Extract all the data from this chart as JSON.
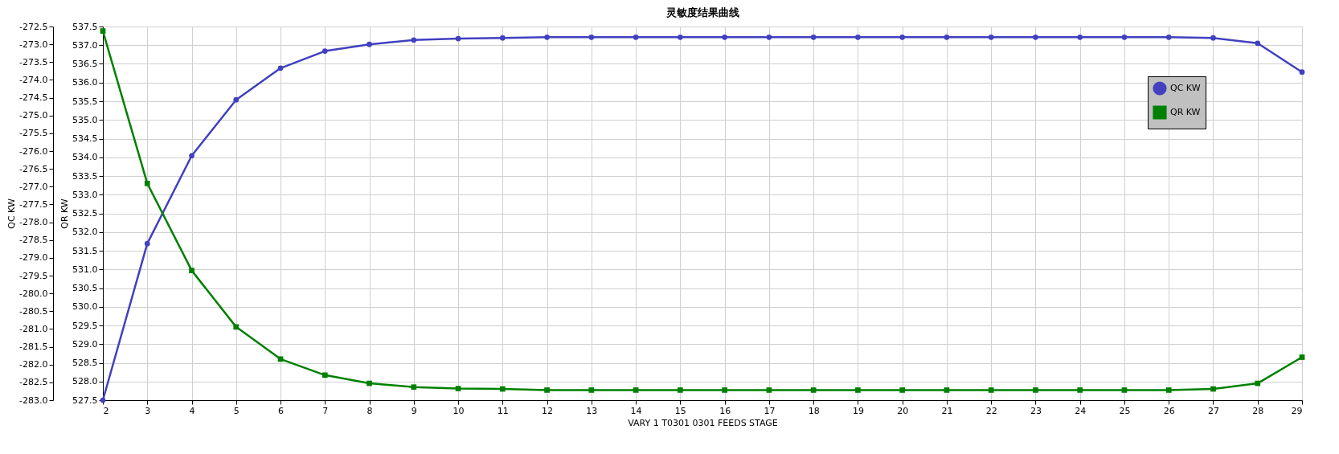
{
  "chart_data": {
    "type": "line",
    "title": "灵敏度结果曲线",
    "xlabel": "VARY   1 T0301 0301 FEEDS STAGE",
    "ylabel": "QC KW",
    "y2label": "QR KW",
    "x": [
      2,
      3,
      4,
      5,
      6,
      7,
      8,
      9,
      10,
      11,
      12,
      13,
      14,
      15,
      16,
      17,
      18,
      19,
      20,
      21,
      22,
      23,
      24,
      25,
      26,
      27,
      28,
      29
    ],
    "series": [
      {
        "name": "QC KW",
        "color": "#4040c0",
        "marker": "circle",
        "values": [
          -283.0,
          -278.6,
          -276.13,
          -274.56,
          -273.67,
          -273.19,
          -273.0,
          -272.88,
          -272.84,
          -272.82,
          -272.8,
          -272.8,
          -272.8,
          -272.8,
          -272.8,
          -272.8,
          -272.8,
          -272.8,
          -272.8,
          -272.8,
          -272.8,
          -272.8,
          -272.8,
          -272.8,
          -272.8,
          -272.82,
          -272.97,
          -273.78
        ]
      },
      {
        "name": "QR KW",
        "color": "#008000",
        "marker": "square",
        "axis": "y2",
        "values": [
          537.38,
          533.3,
          530.97,
          529.46,
          528.6,
          528.17,
          527.95,
          527.85,
          527.81,
          527.8,
          527.77,
          527.77,
          527.77,
          527.77,
          527.77,
          527.77,
          527.77,
          527.77,
          527.77,
          527.77,
          527.77,
          527.77,
          527.77,
          527.77,
          527.77,
          527.8,
          527.95,
          528.65
        ]
      }
    ],
    "xlim": [
      2,
      29
    ],
    "xticks": [
      2,
      3,
      4,
      5,
      6,
      7,
      8,
      9,
      10,
      11,
      12,
      13,
      14,
      15,
      16,
      17,
      18,
      19,
      20,
      21,
      22,
      23,
      24,
      25,
      26,
      27,
      28,
      29
    ],
    "ylim": [
      -283,
      -272.5
    ],
    "yticks": [
      {
        "value": -283,
        "label": "-283.0"
      },
      -282.5,
      {
        "value": -282,
        "label": "-282.0"
      },
      -281.5,
      {
        "value": -281,
        "label": "-281.0"
      },
      -280.5,
      {
        "value": -280,
        "label": "-280.0"
      },
      -279.5,
      {
        "value": -279,
        "label": "-279.0"
      },
      -278.5,
      {
        "value": -278,
        "label": "-278.0"
      },
      -277.5,
      {
        "value": -277,
        "label": "-277.0"
      },
      -276.5,
      {
        "value": -276,
        "label": "-276.0"
      },
      -275.5,
      {
        "value": -275,
        "label": "-275.0"
      },
      -274.5,
      {
        "value": -274,
        "label": "-274.0"
      },
      -273.5,
      {
        "value": -273,
        "label": "-273.0"
      },
      -272.5
    ],
    "y2lim": [
      527.5,
      537.5
    ],
    "y2ticks": [
      527.5,
      {
        "value": 528,
        "label": "528.0"
      },
      528.5,
      {
        "value": 529,
        "label": "529.0"
      },
      529.5,
      {
        "value": 530,
        "label": "530.0"
      },
      530.5,
      {
        "value": 531,
        "label": "531.0"
      },
      531.5,
      {
        "value": 532,
        "label": "532.0"
      },
      532.5,
      {
        "value": 533,
        "label": "533.0"
      },
      533.5,
      {
        "value": 534,
        "label": "534.0"
      },
      534.5,
      {
        "value": 535,
        "label": "535.0"
      },
      535.5,
      {
        "value": 536,
        "label": "536.0"
      },
      536.5,
      {
        "value": 537,
        "label": "537.0"
      },
      537.5
    ],
    "grid": true,
    "legend": "top right",
    "line_style": "solid"
  }
}
